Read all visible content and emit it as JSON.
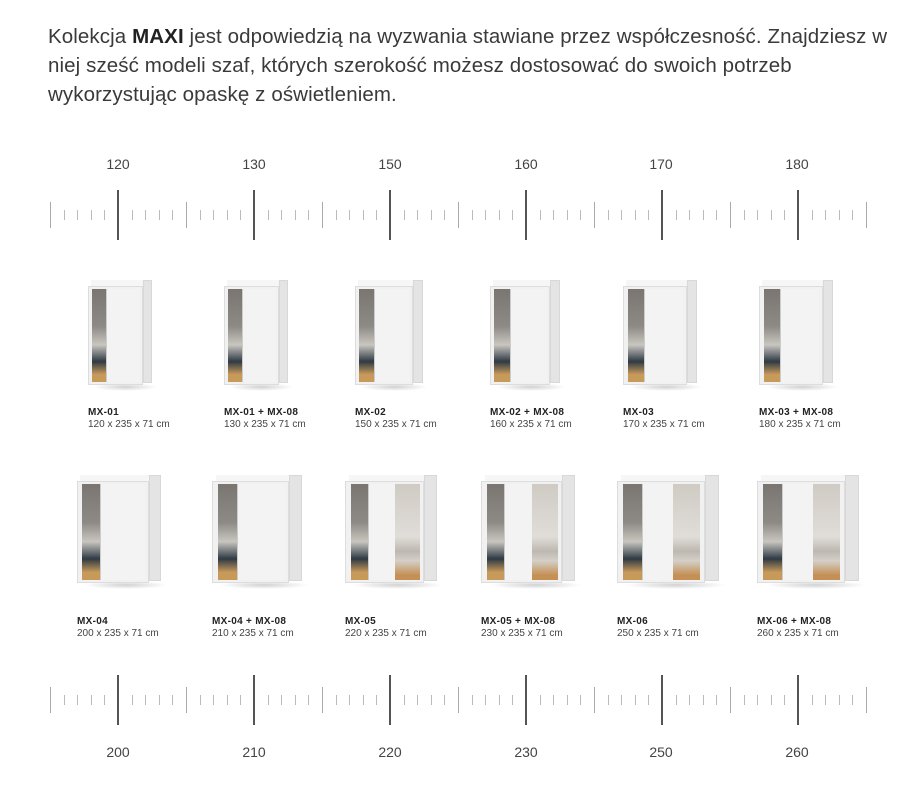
{
  "intro": {
    "before": "Kolekcja ",
    "bold": "MAXI",
    "after": " jest odpowiedzią na wyzwania stawiane przez współczesność. Znajdziesz w niej sześć modeli szaf, których szerokość możesz dostosować do swoich potrzeb wykorzystując opaskę z oświetleniem."
  },
  "top_ruler": {
    "labels": [
      "120",
      "130",
      "150",
      "160",
      "170",
      "180"
    ]
  },
  "bottom_ruler": {
    "labels": [
      "200",
      "210",
      "220",
      "230",
      "250",
      "260"
    ]
  },
  "row1": [
    {
      "name": "MX-01",
      "dims": "120 x 235 x 71 cm",
      "style": "2-door"
    },
    {
      "name": "MX-01 + MX-08",
      "dims": "130 x 235 x 71 cm",
      "style": "2-door"
    },
    {
      "name": "MX-02",
      "dims": "150 x 235 x 71 cm",
      "style": "2-door"
    },
    {
      "name": "MX-02 + MX-08",
      "dims": "160 x 235 x 71 cm",
      "style": "2-door"
    },
    {
      "name": "MX-03",
      "dims": "170 x 235 x 71 cm",
      "style": "2-door"
    },
    {
      "name": "MX-03 + MX-08",
      "dims": "180 x 235 x 71 cm",
      "style": "2-door"
    }
  ],
  "row2": [
    {
      "name": "MX-04",
      "dims": "200 x 235 x 71 cm",
      "style": "2-door"
    },
    {
      "name": "MX-04 + MX-08",
      "dims": "210 x 235 x 71 cm",
      "style": "2-door"
    },
    {
      "name": "MX-05",
      "dims": "220 x 235 x 71 cm",
      "style": "3-door"
    },
    {
      "name": "MX-05 + MX-08",
      "dims": "230 x 235 x 71 cm",
      "style": "3-door"
    },
    {
      "name": "MX-06",
      "dims": "250 x 235 x 71 cm",
      "style": "3-door"
    },
    {
      "name": "MX-06 + MX-08",
      "dims": "260 x 235 x 71 cm",
      "style": "3-door"
    }
  ]
}
